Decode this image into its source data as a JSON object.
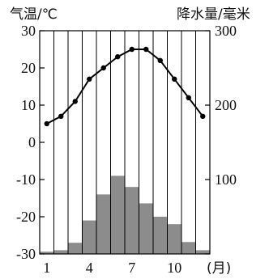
{
  "chart_data": {
    "type": "bar+line",
    "left_axis_title": "气温/℃",
    "right_axis_title": "降水量/毫米",
    "x_unit_label": "(月)",
    "x": [
      1,
      2,
      3,
      4,
      5,
      6,
      7,
      8,
      9,
      10,
      11,
      12
    ],
    "x_tick_labels": [
      "1",
      "4",
      "7",
      "10"
    ],
    "x_tick_positions": [
      1,
      4,
      7,
      10
    ],
    "temperature": {
      "values": [
        5,
        7,
        11,
        17,
        20,
        23,
        25,
        25,
        22,
        17,
        12,
        7
      ],
      "ylim": [
        -30,
        30
      ],
      "ticks": [
        "30",
        "20",
        "10",
        "0",
        "-10",
        "-20",
        "-30"
      ],
      "tick_values": [
        30,
        20,
        10,
        0,
        -10,
        -20,
        -30
      ],
      "color": "#000000"
    },
    "precipitation": {
      "values": [
        3,
        5,
        15,
        45,
        80,
        105,
        90,
        68,
        50,
        40,
        16,
        5
      ],
      "ylim": [
        0,
        300
      ],
      "ticks": [
        "300",
        "200",
        "100",
        "0"
      ],
      "tick_values": [
        300,
        200,
        100,
        0
      ],
      "color": "#8c8c8c"
    },
    "grid": "vertical"
  }
}
